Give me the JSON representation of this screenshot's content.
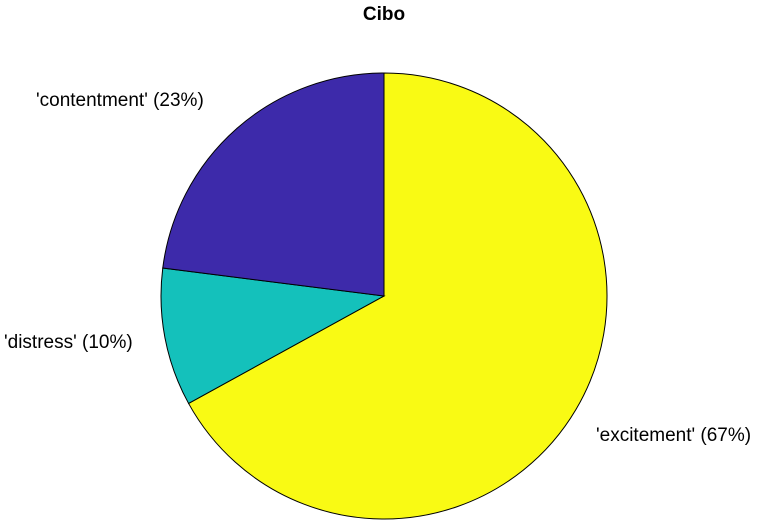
{
  "chart_data": {
    "type": "pie",
    "title": "Cibo",
    "slices": [
      {
        "name": "excitement",
        "label": "'excitement' (67%)",
        "value": 67,
        "color": "#f9fa14"
      },
      {
        "name": "distress",
        "label": "'distress' (10%)",
        "value": 10,
        "color": "#14c1bb"
      },
      {
        "name": "contentment",
        "label": "'contentment' (23%)",
        "value": 23,
        "color": "#3d2aaa"
      }
    ],
    "start_angle_deg": 90,
    "direction": "clockwise",
    "legend": "none"
  }
}
